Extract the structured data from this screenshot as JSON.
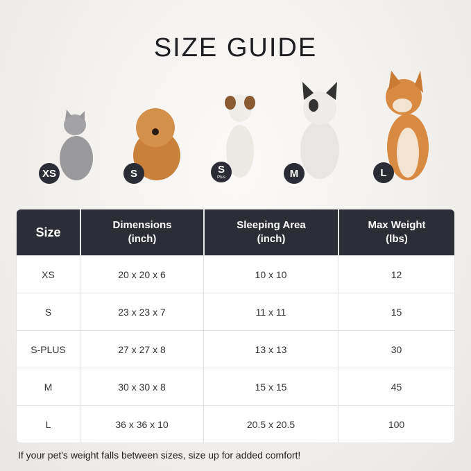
{
  "title": "SIZE GUIDE",
  "pets": [
    {
      "badge": "XS",
      "sub": "",
      "animal": "cat",
      "color": "#9a9a9c"
    },
    {
      "badge": "S",
      "sub": "",
      "animal": "pomeranian",
      "color": "#c9803a"
    },
    {
      "badge": "S",
      "sub": "Plus",
      "animal": "jack-russell",
      "color": "#ece9e4"
    },
    {
      "badge": "M",
      "sub": "",
      "animal": "french-bulldog",
      "color": "#e8e6e3"
    },
    {
      "badge": "L",
      "sub": "",
      "animal": "shiba-inu",
      "color": "#d88a43"
    }
  ],
  "table": {
    "headers": [
      "Size",
      "Dimensions\n(inch)",
      "Sleeping Area\n(inch)",
      "Max Weight\n(lbs)"
    ],
    "rows": [
      [
        "XS",
        "20 x 20 x 6",
        "10 x 10",
        "12"
      ],
      [
        "S",
        "23 x 23 x 7",
        "11 x 11",
        "15"
      ],
      [
        "S-PLUS",
        "27 x 27 x 8",
        "13 x 13",
        "30"
      ],
      [
        "M",
        "30 x 30 x 8",
        "15 x 15",
        "45"
      ],
      [
        "L",
        "36 x 36 x 10",
        "20.5 x 20.5",
        "100"
      ]
    ]
  },
  "note": "If your pet's weight falls between sizes, size up for added comfort!"
}
